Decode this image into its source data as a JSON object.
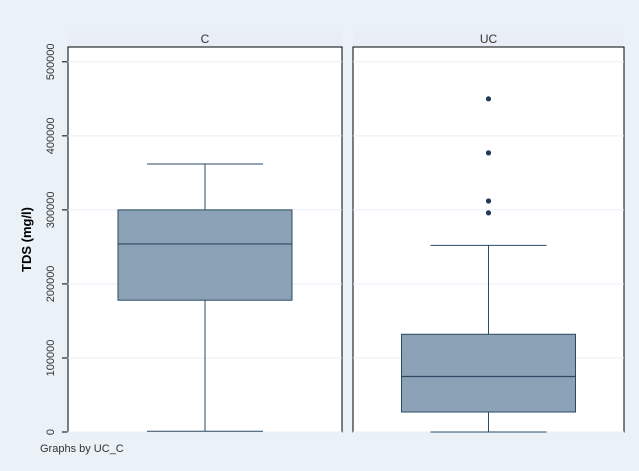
{
  "chart_data": {
    "type": "box",
    "ylabel": "TDS (mg/l)",
    "ylim": [
      0,
      520000
    ],
    "yticks": [
      "0",
      "100000",
      "200000",
      "300000",
      "400000",
      "500000"
    ],
    "ytick_values": [
      0,
      100000,
      200000,
      300000,
      400000,
      500000
    ],
    "grid": true,
    "note": "Graphs by UC_C",
    "colors": {
      "box_fill": "#8ba2b7",
      "box_stroke": "#2c4a63",
      "outlier": "#1f3a58",
      "strip": "#e8edf6",
      "background": "#eaf1f7"
    },
    "panels": [
      {
        "name": "C",
        "whisker_low": 1000,
        "q1": 178000,
        "median": 254000,
        "q3": 300000,
        "whisker_high": 362000,
        "outliers": []
      },
      {
        "name": "UC",
        "whisker_low": 0,
        "q1": 27000,
        "median": 75000,
        "q3": 132000,
        "whisker_high": 252000,
        "outliers": [
          296000,
          312000,
          377000,
          450000
        ]
      }
    ]
  }
}
